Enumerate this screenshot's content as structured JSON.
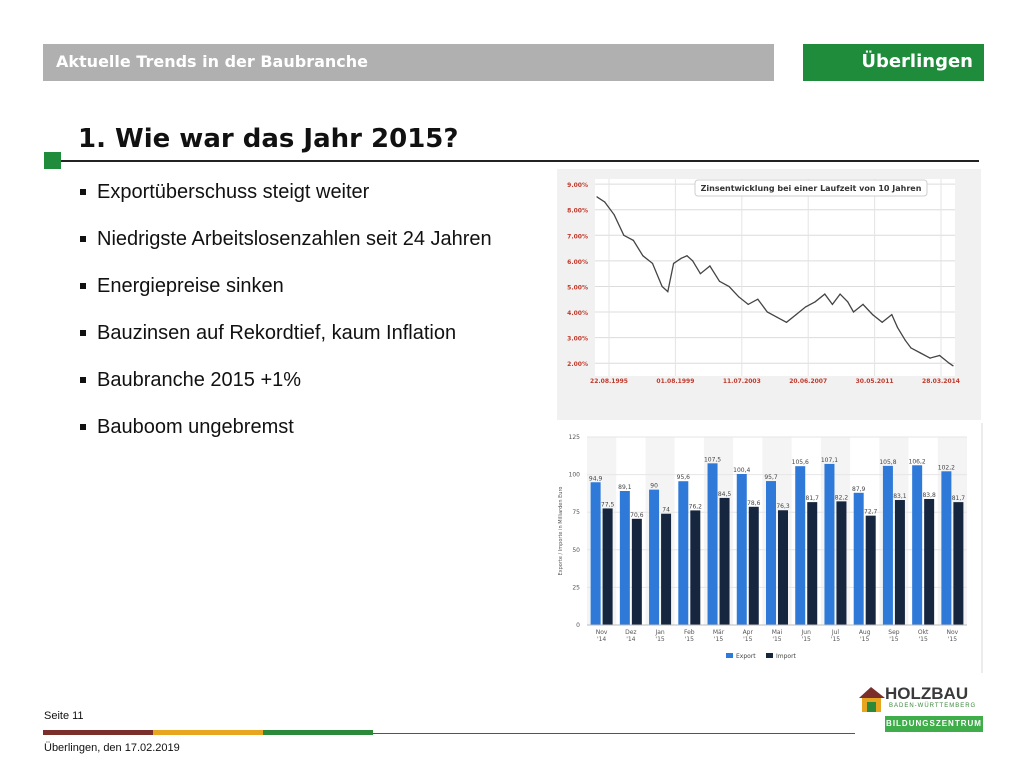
{
  "header": {
    "left_title": "Aktuelle Trends in der Baubranche",
    "right_title": "Überlingen"
  },
  "slide": {
    "title": "1. Wie war das Jahr 2015?",
    "bullets": [
      "Exportüberschuss steigt weiter",
      "Niedrigste Arbeitslosenzahlen seit 24 Jahren",
      "Energiepreise sinken",
      "Bauzinsen auf Rekordtief, kaum Inflation",
      "Baubranche 2015 +1%",
      "Bauboom ungebremst"
    ]
  },
  "footer": {
    "page": "Seite 11",
    "date": "Überlingen, den 17.02.2019"
  },
  "logo": {
    "word": "HOLZBAU",
    "sub": "BADEN-WÜRTTEMBERG",
    "band": "BILDUNGSZENTRUM"
  },
  "colors": {
    "brand_green": "#1f8c3c",
    "header_gray": "#b0b0b0",
    "export_blue": "#2f7ad8",
    "import_navy": "#16263f",
    "line": "#444444"
  },
  "chart_data": [
    {
      "type": "line",
      "title": "Zinsentwicklung bei einer Laufzeit von 10 Jahren",
      "x_ticks": [
        "22.08.1995",
        "01.08.1999",
        "11.07.2003",
        "20.06.2007",
        "30.05.2011",
        "28.03.2014"
      ],
      "y_ticks": [
        "2.00%",
        "3.00%",
        "4.00%",
        "5.00%",
        "6.00%",
        "7.00%",
        "8.00%",
        "9.00%"
      ],
      "ylim": [
        1.5,
        9.2
      ],
      "grid": true,
      "x": [
        1995.6,
        1996.0,
        1996.5,
        1997.0,
        1997.5,
        1998.0,
        1998.5,
        1999.0,
        1999.3,
        1999.6,
        2000.0,
        2000.3,
        2000.6,
        2001.0,
        2001.5,
        2002.0,
        2002.5,
        2003.0,
        2003.5,
        2004.0,
        2004.5,
        2005.0,
        2005.5,
        2006.0,
        2006.5,
        2007.0,
        2007.5,
        2007.9,
        2008.3,
        2008.7,
        2009.0,
        2009.5,
        2010.0,
        2010.5,
        2011.0,
        2011.3,
        2011.7,
        2012.0,
        2012.5,
        2013.0,
        2013.5,
        2014.0,
        2014.2
      ],
      "series": [
        {
          "values": [
            8.5,
            8.3,
            7.8,
            7.0,
            6.8,
            6.2,
            5.9,
            5.0,
            4.8,
            5.9,
            6.1,
            6.2,
            6.0,
            5.5,
            5.8,
            5.2,
            5.0,
            4.6,
            4.3,
            4.5,
            4.0,
            3.8,
            3.6,
            3.9,
            4.2,
            4.4,
            4.7,
            4.3,
            4.7,
            4.4,
            4.0,
            4.3,
            3.9,
            3.6,
            3.9,
            3.4,
            2.9,
            2.6,
            2.4,
            2.2,
            2.3,
            2.0,
            1.9
          ]
        }
      ]
    },
    {
      "type": "bar",
      "categories": [
        "Nov '14",
        "Dez '14",
        "Jan '15",
        "Feb '15",
        "Mär '15",
        "Apr '15",
        "Mai '15",
        "Jun '15",
        "Jul '15",
        "Aug '15",
        "Sep '15",
        "Okt '15",
        "Nov '15"
      ],
      "ylabel": "Exporte / Importe in Milliarden Euro",
      "ylim": [
        0,
        125
      ],
      "y_ticks": [
        0,
        25,
        50,
        75,
        100,
        125
      ],
      "legend": "bottom",
      "series": [
        {
          "name": "Export",
          "values": [
            94.9,
            89.1,
            90,
            95.6,
            107.5,
            100.4,
            95.7,
            105.6,
            107.1,
            87.9,
            105.8,
            106.2,
            102.2
          ]
        },
        {
          "name": "Import",
          "values": [
            77.5,
            70.6,
            74,
            76.2,
            84.5,
            78.6,
            76.3,
            81.7,
            82.2,
            72.7,
            83.1,
            83.8,
            81.7
          ]
        }
      ],
      "value_labels": {
        "export": [
          "94,9",
          "89,1",
          "90",
          "95,6",
          "107,5",
          "100,4",
          "95,7",
          "105,6",
          "107,1",
          "87,9",
          "105,8",
          "106,2",
          "102,2"
        ],
        "import": [
          "77,5",
          "70,6",
          "74",
          "76,2",
          "84,5",
          "78,6",
          "76,3",
          "81,7",
          "82,2",
          "72,7",
          "83,1",
          "83,8",
          "81,7"
        ]
      },
      "tick_labels": [
        [
          "Nov",
          "'14"
        ],
        [
          "Dez",
          "'14"
        ],
        [
          "Jan",
          "'15"
        ],
        [
          "Feb",
          "'15"
        ],
        [
          "Mär",
          "'15"
        ],
        [
          "Apr",
          "'15"
        ],
        [
          "Mai",
          "'15"
        ],
        [
          "Jun",
          "'15"
        ],
        [
          "Jul",
          "'15"
        ],
        [
          "Aug",
          "'15"
        ],
        [
          "Sep",
          "'15"
        ],
        [
          "Okt",
          "'15"
        ],
        [
          "Nov",
          "'15"
        ]
      ]
    }
  ]
}
